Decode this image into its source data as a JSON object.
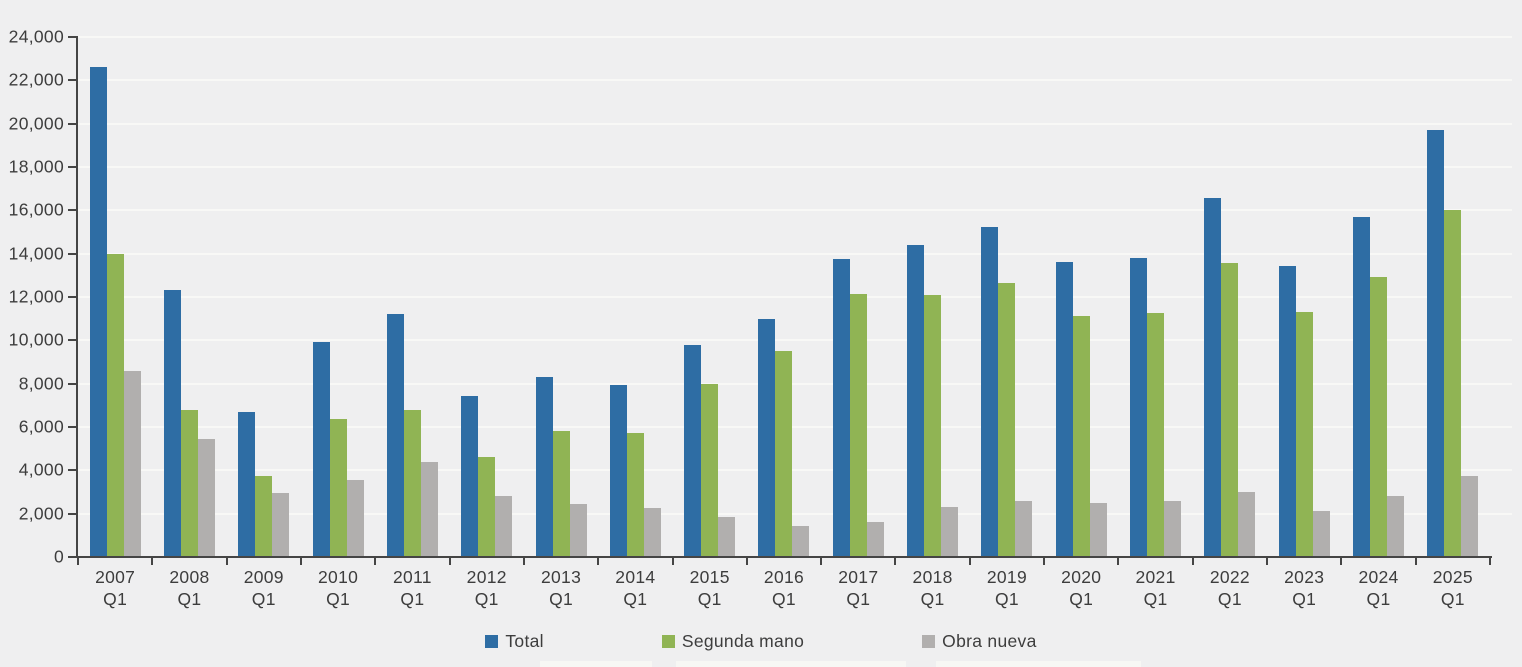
{
  "chart_data": {
    "type": "bar",
    "title": "",
    "xlabel": "",
    "ylabel": "",
    "categories": [
      "2007",
      "2008",
      "2009",
      "2010",
      "2011",
      "2012",
      "2013",
      "2014",
      "2015",
      "2016",
      "2017",
      "2018",
      "2019",
      "2020",
      "2021",
      "2022",
      "2023",
      "2024",
      "2025"
    ],
    "category_sublabel": "Q1",
    "series": [
      {
        "name": "Total",
        "color": "#2e6da4",
        "values": [
          22600,
          12300,
          6700,
          9900,
          11200,
          7450,
          8300,
          7950,
          9800,
          11000,
          13750,
          14400,
          15250,
          13600,
          13800,
          16550,
          13450,
          15700,
          19700
        ]
      },
      {
        "name": "Segunda mano",
        "color": "#90b454",
        "values": [
          14000,
          6800,
          3750,
          6350,
          6800,
          4600,
          5800,
          5700,
          8000,
          9500,
          12150,
          12100,
          12650,
          11100,
          11250,
          13550,
          11300,
          12900,
          16000
        ]
      },
      {
        "name": "Obra nueva",
        "color": "#b1afae",
        "values": [
          8600,
          5450,
          2950,
          3550,
          4400,
          2800,
          2450,
          2250,
          1850,
          1450,
          1600,
          2300,
          2600,
          2500,
          2600,
          3000,
          2100,
          2800,
          3750
        ]
      }
    ],
    "ylim": [
      0,
      24000
    ],
    "ytick_step": 2000,
    "ytick_labels": [
      "0",
      "2,000",
      "4,000",
      "6,000",
      "8,000",
      "10,000",
      "12,000",
      "14,000",
      "16,000",
      "18,000",
      "20,000",
      "22,000",
      "24,000"
    ],
    "grid": "horizontal",
    "legend_position": "bottom",
    "colors": {
      "background": "#efeff0",
      "gridline": "#f8f8f6",
      "axis": "#454545",
      "text": "#3d3d3d"
    }
  }
}
